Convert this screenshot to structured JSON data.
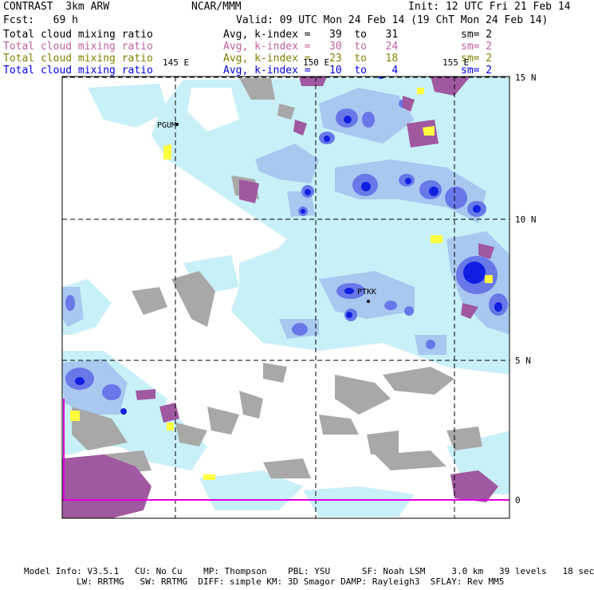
{
  "header": {
    "left1": "CONTRAST  3km ARW",
    "center1": "NCAR/MMM",
    "right1": "Init: 12 UTC Fri 21 Feb 14",
    "fcst": "Fcst:   69 h",
    "valid": "Valid: 09 UTC Mon 24 Feb 14 (19 ChT Mon 24 Feb 14)"
  },
  "fields": [
    {
      "name": "Total cloud mixing ratio",
      "stat": "Avg, k-index =   39  to   31",
      "sm": "sm= 2",
      "color": "#000000"
    },
    {
      "name": "Total cloud mixing ratio",
      "stat": "Avg, k-index =   30  to   24",
      "sm": "sm= 2",
      "color": "#c060a0"
    },
    {
      "name": "Total cloud mixing ratio",
      "stat": "Avg, k-index =   23  to   18",
      "sm": "sm= 2",
      "color": "#808000"
    },
    {
      "name": "Total cloud mixing ratio",
      "stat": "Avg, k-index =   10  to    4",
      "sm": "sm= 2",
      "color": "#0000e0"
    }
  ],
  "axes": {
    "lon_labels": [
      "145 E",
      "150 E",
      "155 E"
    ],
    "lat_labels": [
      "15 N",
      "10 N",
      "5 N",
      "0"
    ]
  },
  "stations": [
    "PGUM",
    "PTKK"
  ],
  "footer": {
    "line1": "Model Info: V3.5.1   CU: No Cu    MP: Thompson    PBL: YSU      SF: Noah LSM     3.0 km   39 levels   18 sec",
    "line2": "LW: RRTMG   SW: RRTMG  DIFF: simple KM: 3D Smagor DAMP: Rayleigh3  SFLAY: Rev MM5"
  },
  "colors": {
    "cloud_light": "#c8f0f8",
    "cloud_mid": "#a8c8f0",
    "cloud_dark": "#6878e8",
    "cloud_core": "#1020e0",
    "mid_cloud": "#a058a0",
    "low_cloud": "#ffff40",
    "land_gray": "#a8a8a8"
  }
}
